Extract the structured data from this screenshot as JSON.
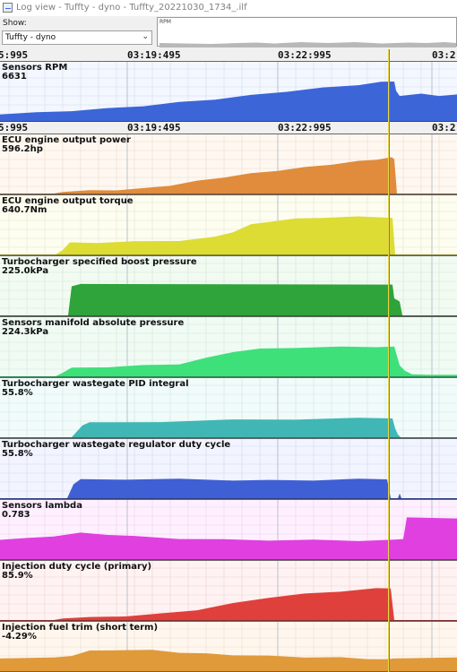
{
  "window": {
    "title": "Log view - Tuffty - dyno - Tuffty_20221030_1734_.ilf"
  },
  "toolbar": {
    "show_label": "Show:",
    "show_value": "Tuffty - dyno"
  },
  "overview": {
    "label": "RPM"
  },
  "time_axis": {
    "ticks": [
      "5:995",
      "03:19:495",
      "03:22:995",
      "03:2"
    ]
  },
  "channels": [
    {
      "name": "Sensors RPM",
      "value": "6631",
      "color": "#3c65d8",
      "bg": "#f3f7ff",
      "grid": "#d4dde8",
      "shape": [
        [
          0,
          0.17
        ],
        [
          40,
          0.2
        ],
        [
          80,
          0.25
        ],
        [
          120,
          0.3
        ],
        [
          160,
          0.37
        ],
        [
          200,
          0.45
        ],
        [
          240,
          0.53
        ],
        [
          280,
          0.62
        ],
        [
          320,
          0.72
        ],
        [
          360,
          0.8
        ],
        [
          400,
          0.88
        ],
        [
          425,
          0.94
        ],
        [
          440,
          0.97
        ],
        [
          442,
          0.72
        ],
        [
          446,
          0.62
        ],
        [
          470,
          0.65
        ],
        [
          490,
          0.62
        ],
        [
          510,
          0.63
        ]
      ]
    },
    {
      "name": "ECU engine output power",
      "value": "596.2hp",
      "color": "#e08c3c",
      "bg": "#fff8f1",
      "grid": "#e8dccf",
      "shape": [
        [
          0,
          0
        ],
        [
          60,
          0
        ],
        [
          70,
          0.04
        ],
        [
          100,
          0.07
        ],
        [
          130,
          0.09
        ],
        [
          160,
          0.12
        ],
        [
          190,
          0.2
        ],
        [
          220,
          0.3
        ],
        [
          250,
          0.4
        ],
        [
          280,
          0.48
        ],
        [
          310,
          0.56
        ],
        [
          340,
          0.63
        ],
        [
          370,
          0.71
        ],
        [
          400,
          0.78
        ],
        [
          420,
          0.83
        ],
        [
          437,
          0.87
        ],
        [
          440,
          0.85
        ],
        [
          443,
          0
        ],
        [
          510,
          0
        ]
      ]
    },
    {
      "name": "ECU engine output torque",
      "value": "640.7Nm",
      "color": "#dcdc34",
      "bg": "#fdfdf0",
      "grid": "#e6e6cf",
      "shape": [
        [
          0,
          0
        ],
        [
          62,
          0
        ],
        [
          70,
          0.12
        ],
        [
          78,
          0.28
        ],
        [
          110,
          0.29
        ],
        [
          150,
          0.31
        ],
        [
          200,
          0.34
        ],
        [
          240,
          0.42
        ],
        [
          260,
          0.55
        ],
        [
          280,
          0.72
        ],
        [
          300,
          0.8
        ],
        [
          330,
          0.86
        ],
        [
          360,
          0.9
        ],
        [
          400,
          0.91
        ],
        [
          438,
          0.9
        ],
        [
          441,
          0
        ],
        [
          510,
          0
        ]
      ]
    },
    {
      "name": "Turbocharger specified boost pressure",
      "value": "225.0kPa",
      "color": "#2fa43a",
      "bg": "#f2fbf2",
      "grid": "#d4e6d4",
      "shape": [
        [
          0,
          0
        ],
        [
          76,
          0
        ],
        [
          80,
          0.72
        ],
        [
          90,
          0.75
        ],
        [
          438,
          0.76
        ],
        [
          440,
          0.4
        ],
        [
          446,
          0.35
        ],
        [
          449,
          0
        ],
        [
          510,
          0
        ]
      ]
    },
    {
      "name": "Sensors manifold absolute pressure",
      "value": "224.3kPa",
      "color": "#3ee07a",
      "bg": "#f0fbf4",
      "grid": "#d0e8da",
      "shape": [
        [
          0,
          0
        ],
        [
          62,
          0
        ],
        [
          70,
          0.1
        ],
        [
          80,
          0.2
        ],
        [
          120,
          0.23
        ],
        [
          160,
          0.26
        ],
        [
          200,
          0.3
        ],
        [
          230,
          0.44
        ],
        [
          260,
          0.6
        ],
        [
          290,
          0.66
        ],
        [
          330,
          0.7
        ],
        [
          380,
          0.71
        ],
        [
          420,
          0.72
        ],
        [
          440,
          0.71
        ],
        [
          446,
          0.28
        ],
        [
          452,
          0.12
        ],
        [
          460,
          0.06
        ],
        [
          480,
          0.04
        ],
        [
          510,
          0.04
        ]
      ]
    },
    {
      "name": "Turbocharger wastegate PID integral",
      "value": "55.8%",
      "color": "#40b7b4",
      "bg": "#f0fbfa",
      "grid": "#cfe5e4",
      "shape": [
        [
          0,
          0
        ],
        [
          80,
          0
        ],
        [
          92,
          0.3
        ],
        [
          100,
          0.35
        ],
        [
          180,
          0.38
        ],
        [
          260,
          0.42
        ],
        [
          330,
          0.44
        ],
        [
          400,
          0.46
        ],
        [
          438,
          0.47
        ],
        [
          441,
          0.2
        ],
        [
          444,
          0.08
        ],
        [
          447,
          0
        ],
        [
          510,
          0
        ]
      ]
    },
    {
      "name": "Turbocharger wastegate regulator duty cycle",
      "value": "55.8%",
      "color": "#3f5fd4",
      "bg": "#f2f4ff",
      "grid": "#d4d9ea",
      "shape": [
        [
          0,
          0
        ],
        [
          75,
          0
        ],
        [
          82,
          0.35
        ],
        [
          90,
          0.45
        ],
        [
          140,
          0.46
        ],
        [
          200,
          0.46
        ],
        [
          260,
          0.44
        ],
        [
          300,
          0.43
        ],
        [
          350,
          0.44
        ],
        [
          400,
          0.46
        ],
        [
          432,
          0.47
        ],
        [
          436,
          0
        ],
        [
          444,
          0
        ],
        [
          446,
          0.1
        ],
        [
          448,
          0
        ],
        [
          510,
          0
        ]
      ]
    },
    {
      "name": "Sensors lambda",
      "value": "0.783",
      "color": "#e040e0",
      "bg": "#fff0ff",
      "grid": "#ead2ea",
      "shape": [
        [
          0,
          0.48
        ],
        [
          30,
          0.5
        ],
        [
          60,
          0.56
        ],
        [
          90,
          0.63
        ],
        [
          120,
          0.6
        ],
        [
          150,
          0.55
        ],
        [
          200,
          0.5
        ],
        [
          250,
          0.47
        ],
        [
          300,
          0.46
        ],
        [
          350,
          0.46
        ],
        [
          400,
          0.45
        ],
        [
          440,
          0.46
        ],
        [
          450,
          0.5
        ],
        [
          454,
          1.0
        ],
        [
          510,
          1.0
        ]
      ]
    },
    {
      "name": "Injection duty cycle (primary)",
      "value": "85.9%",
      "color": "#e0403c",
      "bg": "#fff2f2",
      "grid": "#ecd2d2",
      "shape": [
        [
          0,
          0
        ],
        [
          60,
          0
        ],
        [
          70,
          0.04
        ],
        [
          100,
          0.06
        ],
        [
          140,
          0.1
        ],
        [
          180,
          0.15
        ],
        [
          220,
          0.25
        ],
        [
          260,
          0.4
        ],
        [
          300,
          0.55
        ],
        [
          340,
          0.63
        ],
        [
          380,
          0.7
        ],
        [
          420,
          0.76
        ],
        [
          436,
          0.78
        ],
        [
          440,
          0
        ],
        [
          510,
          0
        ]
      ]
    },
    {
      "name": "Injection fuel trim (short term)",
      "value": "-4.29%",
      "color": "#e09a3a",
      "bg": "#fff7ee",
      "grid": "#ebdccb",
      "shape": [
        [
          0,
          0.42
        ],
        [
          60,
          0.42
        ],
        [
          80,
          0.5
        ],
        [
          100,
          0.64
        ],
        [
          130,
          0.68
        ],
        [
          170,
          0.66
        ],
        [
          200,
          0.6
        ],
        [
          230,
          0.55
        ],
        [
          260,
          0.52
        ],
        [
          300,
          0.48
        ],
        [
          340,
          0.45
        ],
        [
          380,
          0.43
        ],
        [
          410,
          0.4
        ],
        [
          430,
          0.36
        ],
        [
          440,
          0.42
        ],
        [
          510,
          0.42
        ]
      ]
    }
  ]
}
